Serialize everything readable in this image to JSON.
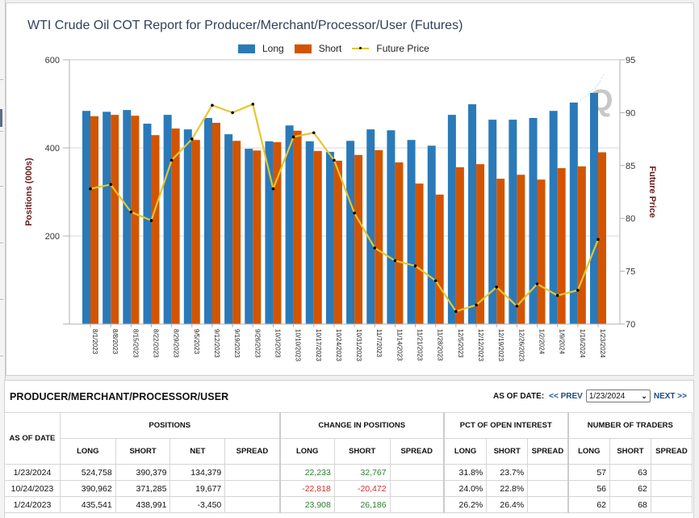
{
  "chart": {
    "title": "WTI Crude Oil COT Report for Producer/Merchant/Processor/User (Futures)",
    "legend": [
      {
        "label": "Long",
        "color": "#2a7ab9"
      },
      {
        "label": "Short",
        "color": "#d35400"
      },
      {
        "label": "Future Price",
        "color": "#e6c62e"
      }
    ]
  },
  "chart_data": {
    "type": "bar",
    "title": "WTI Crude Oil COT Report for Producer/Merchant/Processor/User (Futures)",
    "xlabel": "",
    "ylabel": "Positions (000s)",
    "y2label": "Future Price",
    "ylim": [
      0,
      600
    ],
    "y2lim": [
      70,
      95
    ],
    "yticks": [
      "600",
      "400",
      "200"
    ],
    "y2ticks": [
      "95",
      "90",
      "85",
      "80",
      "75",
      "70"
    ],
    "legend_position": "top-center",
    "grid": true,
    "categories": [
      "8/1/2023",
      "8/8/2023",
      "8/15/2023",
      "8/22/2023",
      "8/29/2023",
      "9/5/2023",
      "9/12/2023",
      "9/19/2023",
      "9/26/2023",
      "10/3/2023",
      "10/10/2023",
      "10/17/2023",
      "10/24/2023",
      "10/31/2023",
      "11/7/2023",
      "11/14/2023",
      "11/21/2023",
      "11/28/2023",
      "12/5/2023",
      "12/12/2023",
      "12/19/2023",
      "12/26/2023",
      "1/2/2024",
      "1/9/2024",
      "1/16/2024",
      "1/23/2024"
    ],
    "series": [
      {
        "name": "Long",
        "type": "bar",
        "axis": "left",
        "color": "#2a7ab9",
        "values": [
          484,
          482,
          486,
          455,
          475,
          442,
          468,
          431,
          398,
          415,
          451,
          415,
          391,
          416,
          442,
          440,
          418,
          405,
          475,
          499,
          464,
          464,
          468,
          484,
          503,
          525
        ]
      },
      {
        "name": "Short",
        "type": "bar",
        "axis": "left",
        "color": "#d35400",
        "values": [
          472,
          475,
          473,
          429,
          444,
          418,
          457,
          416,
          394,
          413,
          439,
          393,
          371,
          384,
          395,
          367,
          319,
          294,
          356,
          363,
          330,
          339,
          328,
          354,
          358,
          390
        ]
      },
      {
        "name": "Future Price",
        "type": "line",
        "axis": "right",
        "color": "#e6c62e",
        "values": [
          82.8,
          83.2,
          80.6,
          79.8,
          85.5,
          87.5,
          90.7,
          90.0,
          90.8,
          82.8,
          87.7,
          88.1,
          85.5,
          80.5,
          77.2,
          76.0,
          75.5,
          74.1,
          71.2,
          71.8,
          73.5,
          71.7,
          73.8,
          72.7,
          73.2,
          78.0
        ]
      }
    ]
  },
  "table": {
    "title": "PRODUCER/MERCHANT/PROCESSOR/USER",
    "as_of_label": "AS OF DATE:",
    "prev_label": "<< PREV",
    "next_label": "NEXT >>",
    "selected_date": "1/23/2024",
    "date_header": "AS OF DATE",
    "groups": [
      "POSITIONS",
      "CHANGE IN POSITIONS",
      "PCT OF OPEN INTEREST",
      "NUMBER OF TRADERS"
    ],
    "subheaders": {
      "positions": [
        "LONG",
        "SHORT",
        "NET",
        "SPREAD"
      ],
      "change": [
        "LONG",
        "SHORT",
        "SPREAD"
      ],
      "pct": [
        "LONG",
        "SHORT",
        "SPREAD"
      ],
      "traders": [
        "LONG",
        "SHORT",
        "SPREAD"
      ]
    },
    "rows": [
      {
        "date": "1/23/2024",
        "pos_long": "524,758",
        "pos_short": "390,379",
        "pos_net": "134,379",
        "pos_spread": "",
        "chg_long": "22,233",
        "chg_short": "32,767",
        "chg_spread": "",
        "pct_long": "31.8%",
        "pct_short": "23.7%",
        "pct_spread": "",
        "tr_long": "57",
        "tr_short": "63",
        "tr_spread": ""
      },
      {
        "date": "10/24/2023",
        "pos_long": "390,962",
        "pos_short": "371,285",
        "pos_net": "19,677",
        "pos_spread": "",
        "chg_long": "-22,818",
        "chg_short": "-20,472",
        "chg_spread": "",
        "pct_long": "24.0%",
        "pct_short": "22.8%",
        "pct_spread": "",
        "tr_long": "56",
        "tr_short": "62",
        "tr_spread": ""
      },
      {
        "date": "1/24/2023",
        "pos_long": "435,541",
        "pos_short": "438,991",
        "pos_net": "-3,450",
        "pos_spread": "",
        "chg_long": "23,908",
        "chg_short": "26,186",
        "chg_spread": "",
        "pct_long": "26.2%",
        "pct_short": "26.4%",
        "pct_spread": "",
        "tr_long": "62",
        "tr_short": "68",
        "tr_spread": ""
      }
    ]
  }
}
